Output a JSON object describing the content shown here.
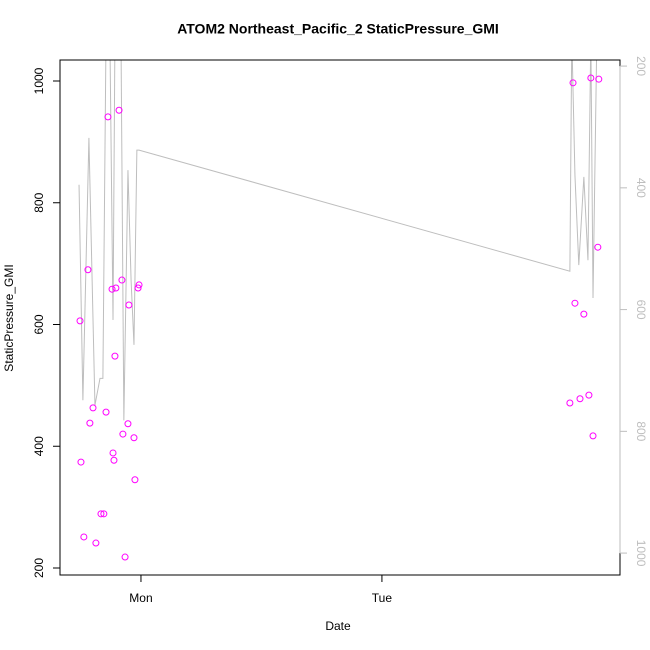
{
  "chart_data": {
    "type": "scatter",
    "title": "ATOM2 Northeast_Pacific_2 StaticPressure_GMI",
    "xlabel": "Date",
    "ylabel": "StaticPressure_GMI",
    "xlim": [
      0.664,
      2.988
    ],
    "xticks": [
      {
        "value": 1,
        "label": "Mon"
      },
      {
        "value": 2,
        "label": "Tue"
      }
    ],
    "ylim": [
      188.5,
      1034.5
    ],
    "yticks": [
      200,
      400,
      600,
      800,
      1000
    ],
    "y2lim": [
      1036,
      190
    ],
    "y2ticks": [
      200,
      400,
      600,
      800,
      1000
    ],
    "y2color": "#bebebe",
    "series": [
      {
        "type": "scatter",
        "color": "#ff00ff",
        "x": [
          0.747,
          0.751,
          0.763,
          0.78,
          0.788,
          0.801,
          0.813,
          0.834,
          0.846,
          0.855,
          0.863,
          0.88,
          0.884,
          0.888,
          0.892,
          0.896,
          0.909,
          0.921,
          0.925,
          0.934,
          0.946,
          0.95,
          0.971,
          0.975,
          0.988,
          0.992,
          2.78,
          2.793,
          2.801,
          2.822,
          2.838,
          2.859,
          2.867,
          2.876,
          2.896,
          2.9
        ],
        "values": [
          606,
          374,
          251,
          690,
          438,
          463,
          241,
          289,
          289,
          456,
          941,
          658,
          389,
          377,
          548,
          660,
          952,
          673,
          420,
          218,
          437,
          632,
          414,
          345,
          660,
          665,
          471,
          997,
          635,
          478,
          617,
          484,
          1005,
          417,
          727,
          1003
        ]
      },
      {
        "type": "line",
        "color": "#bebebe",
        "axis": "y2",
        "x": [
          0.743,
          0.759,
          0.784,
          0.809,
          0.83,
          0.842,
          0.855,
          0.871,
          0.884,
          0.892,
          0.917,
          0.929,
          0.946,
          0.959,
          0.971,
          0.983,
          0.992,
          2.78,
          2.788,
          2.801,
          2.817,
          2.838,
          2.855,
          2.867,
          2.876,
          2.892
        ],
        "values": [
          395,
          749,
          318,
          757,
          713,
          713,
          150,
          150,
          617,
          150,
          150,
          782,
          371,
          552,
          658,
          338,
          338,
          537,
          150,
          379,
          527,
          382,
          519,
          150,
          581,
          150
        ]
      }
    ]
  }
}
